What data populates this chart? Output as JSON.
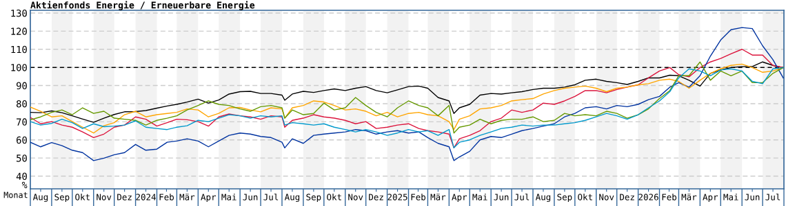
{
  "chart_data": {
    "type": "line",
    "title": "Aktienfonds Energie / Erneuerbare Energie",
    "xlabel": "Monat",
    "ylabel": "%",
    "x": [
      "2023-08-01",
      "2023-08-16",
      "2023-09-01",
      "2023-09-16",
      "2023-10-01",
      "2023-10-16",
      "2023-11-01",
      "2023-11-16",
      "2023-12-01",
      "2023-12-16",
      "2024-01-01",
      "2024-01-16",
      "2024-02-01",
      "2024-02-16",
      "2024-03-01",
      "2024-03-16",
      "2024-04-01",
      "2024-04-16",
      "2024-05-01",
      "2024-05-16",
      "2024-06-01",
      "2024-06-16",
      "2024-07-01",
      "2024-07-16",
      "2024-08-01",
      "2024-08-05",
      "2024-08-16",
      "2024-09-01",
      "2024-09-16",
      "2024-10-01",
      "2024-10-16",
      "2024-11-01",
      "2024-11-16",
      "2024-12-01",
      "2024-12-16",
      "2025-01-01",
      "2025-01-16",
      "2025-02-01",
      "2025-02-16",
      "2025-03-01",
      "2025-03-16",
      "2025-04-01",
      "2025-04-08",
      "2025-04-16",
      "2025-05-01",
      "2025-05-16",
      "2025-06-01",
      "2025-06-16",
      "2025-07-01",
      "2025-07-16",
      "2025-08-01",
      "2025-08-16",
      "2025-09-01",
      "2025-09-16",
      "2025-10-01",
      "2025-10-16",
      "2025-11-01",
      "2025-11-16",
      "2025-12-01",
      "2025-12-16",
      "2026-01-01",
      "2026-01-16",
      "2026-02-01",
      "2026-02-16",
      "2026-03-01",
      "2026-03-16",
      "2026-04-01",
      "2026-04-16",
      "2026-05-01",
      "2026-05-16",
      "2026-06-01",
      "2026-06-16",
      "2026-07-01",
      "2026-07-16",
      "2026-07-31"
    ],
    "series": [
      {
        "color": "#000000",
        "values": [
          75.2,
          75,
          76,
          75,
          73.3,
          71.5,
          69.7,
          72,
          74,
          75.5,
          75.6,
          76.2,
          77.5,
          78.7,
          79.6,
          80.9,
          82.5,
          80.3,
          82,
          85.3,
          86.6,
          86.8,
          85.6,
          85.6,
          84.7,
          81.9,
          85.3,
          86.8,
          86.2,
          87.2,
          88.1,
          87.2,
          88.5,
          89.4,
          87.2,
          86,
          87.6,
          89.4,
          89.7,
          88.5,
          83.4,
          81.5,
          74.6,
          77.7,
          79.6,
          84.7,
          85.6,
          85.3,
          86,
          86.6,
          87.8,
          88.5,
          88.5,
          89.1,
          90.4,
          92.9,
          93.5,
          92.3,
          91.6,
          90.6,
          92.3,
          94.2,
          94.2,
          95.7,
          95.4,
          92.9,
          89.7,
          96.7,
          98.6,
          99.9,
          100.5,
          100.5,
          103,
          101.1,
          99.9
        ]
      },
      {
        "color": "#dc143c",
        "values": [
          72.4,
          68.9,
          70.1,
          68.2,
          67,
          64.4,
          61.3,
          63.2,
          67,
          68.2,
          72.7,
          71.4,
          67.6,
          69.5,
          71.4,
          71.1,
          70.1,
          67.6,
          72.7,
          74.3,
          73.3,
          72.7,
          71.4,
          73.3,
          72.7,
          67,
          70.8,
          72,
          73.9,
          72.7,
          72,
          70.8,
          68.9,
          70.1,
          66.3,
          67,
          68.2,
          68.9,
          66.3,
          65.1,
          64.4,
          63.2,
          55.6,
          60.6,
          62.5,
          65.1,
          70.1,
          72,
          76.5,
          75.2,
          76.5,
          80.3,
          79.6,
          81.5,
          84,
          87.2,
          87.2,
          86,
          87.8,
          89.1,
          90.4,
          94.2,
          98,
          99.9,
          96,
          94.8,
          99.9,
          103,
          104.9,
          107.5,
          110,
          106.8,
          106.8,
          101.1,
          99.9
        ]
      },
      {
        "color": "#0033a0",
        "values": [
          58.7,
          56.2,
          58.5,
          56.8,
          54.3,
          53,
          48.6,
          49.9,
          51.8,
          53,
          57.5,
          54.3,
          54.9,
          58.7,
          59.4,
          60.6,
          59.4,
          56.2,
          59.4,
          62.5,
          63.8,
          63.2,
          61.9,
          61.3,
          58.7,
          55.6,
          60.6,
          58.1,
          62.5,
          63.2,
          63.8,
          64.4,
          65.7,
          65.1,
          63.2,
          64.4,
          65.1,
          63.8,
          64.4,
          61.3,
          58.1,
          56.2,
          48.6,
          50.6,
          53.7,
          60,
          61.9,
          61.3,
          63.2,
          65.1,
          66.3,
          67.6,
          68.9,
          72.7,
          74.6,
          77.7,
          78.3,
          77.1,
          79,
          78.3,
          79.6,
          82.2,
          84,
          89.1,
          91.6,
          89.1,
          95.4,
          106.2,
          115.1,
          120.8,
          122,
          121.4,
          111.9,
          104.3,
          94.2
        ]
      },
      {
        "color": "#ffa500",
        "values": [
          78.1,
          75.8,
          72.7,
          73.3,
          70.1,
          67,
          63.8,
          67.8,
          69.5,
          73.9,
          75.8,
          72.7,
          73.9,
          74.6,
          75.2,
          77.1,
          76.5,
          72.7,
          74.6,
          77.7,
          77.9,
          76.5,
          75.5,
          77.7,
          77.1,
          72,
          77.7,
          79,
          81.5,
          80.9,
          79,
          76.5,
          77.1,
          75.8,
          73.3,
          75.2,
          72.7,
          74.6,
          75.2,
          73.9,
          73.3,
          70.1,
          65.7,
          71.4,
          73.3,
          77.1,
          77.7,
          79,
          81.5,
          82.2,
          82.8,
          85.3,
          87.2,
          88.5,
          89.1,
          89.7,
          88.5,
          86.6,
          88.5,
          89.1,
          90.4,
          91,
          92.9,
          93.5,
          92.3,
          88.5,
          92.9,
          96.7,
          99.2,
          101.1,
          101.8,
          99.9,
          97.3,
          98,
          99.9
        ]
      },
      {
        "color": "#669900",
        "values": [
          71.1,
          72.7,
          75.2,
          76.5,
          73.9,
          77.7,
          74.6,
          75.8,
          72,
          71.4,
          70.8,
          68.2,
          70.8,
          72,
          73.3,
          76.5,
          79,
          81.5,
          79.6,
          79,
          77.1,
          75.8,
          78.3,
          79,
          77.7,
          72,
          76.5,
          73.9,
          74.6,
          80.3,
          76.5,
          77.7,
          83.4,
          79,
          75.2,
          72.7,
          77.7,
          81.5,
          79,
          77.7,
          73.3,
          79,
          63.8,
          67,
          68.2,
          71.4,
          68.9,
          70.8,
          71.4,
          71.4,
          72.7,
          70.1,
          70.8,
          74.6,
          73.3,
          73.9,
          73.3,
          75.8,
          74.6,
          72,
          73.9,
          77.1,
          82.8,
          87.2,
          95.4,
          95.4,
          103,
          92.9,
          98,
          95.4,
          98,
          91.6,
          91.6,
          96.7,
          99.9
        ]
      },
      {
        "color": "#0099cc",
        "values": [
          70.1,
          68.2,
          69.1,
          71.4,
          69.5,
          66.3,
          68.9,
          67.3,
          67.6,
          68.2,
          70.5,
          67,
          66.3,
          65.7,
          67,
          67.8,
          70.8,
          70.1,
          72,
          73.9,
          73.3,
          72,
          73.3,
          72.7,
          73.3,
          68.2,
          69.5,
          68.9,
          68.2,
          68.9,
          67,
          65.7,
          64.4,
          65.7,
          64.4,
          62.5,
          63.8,
          65.7,
          64.4,
          65.1,
          62.5,
          65.7,
          55.6,
          58.7,
          60,
          62.5,
          64.4,
          66.3,
          67,
          68.2,
          67.6,
          68.2,
          68.2,
          68.9,
          69.5,
          70.8,
          72.7,
          74.6,
          73.3,
          71.4,
          73.9,
          77.7,
          81.5,
          86.6,
          94.2,
          99.2,
          98,
          95.4,
          98.6,
          99.2,
          98,
          92.3,
          91,
          99.2,
          99.9
        ]
      }
    ],
    "xlim": [
      "2023-08-01",
      "2026-08-01"
    ],
    "xticks": [
      {
        "value": "2023-08-16",
        "label": "Aug"
      },
      {
        "value": "2023-09-16",
        "label": "Sep"
      },
      {
        "value": "2023-10-16",
        "label": "Okt"
      },
      {
        "value": "2023-11-16",
        "label": "Nov"
      },
      {
        "value": "2023-12-16",
        "label": "Dez"
      },
      {
        "value": "2024-01-16",
        "label": "2024"
      },
      {
        "value": "2024-02-15",
        "label": "Feb"
      },
      {
        "value": "2024-03-16",
        "label": "Mär"
      },
      {
        "value": "2024-04-16",
        "label": "Apr"
      },
      {
        "value": "2024-05-16",
        "label": "Mai"
      },
      {
        "value": "2024-06-16",
        "label": "Jun"
      },
      {
        "value": "2024-07-16",
        "label": "Jul"
      },
      {
        "value": "2024-08-16",
        "label": "Aug"
      },
      {
        "value": "2024-09-16",
        "label": "Sep"
      },
      {
        "value": "2024-10-16",
        "label": "Okt"
      },
      {
        "value": "2024-11-16",
        "label": "Nov"
      },
      {
        "value": "2024-12-16",
        "label": "Dez"
      },
      {
        "value": "2025-01-16",
        "label": "2025"
      },
      {
        "value": "2025-02-15",
        "label": "Feb"
      },
      {
        "value": "2025-03-16",
        "label": "Mär"
      },
      {
        "value": "2025-04-16",
        "label": "Apr"
      },
      {
        "value": "2025-05-16",
        "label": "Mai"
      },
      {
        "value": "2025-06-16",
        "label": "Jun"
      },
      {
        "value": "2025-07-16",
        "label": "Jul"
      },
      {
        "value": "2025-08-16",
        "label": "Aug"
      },
      {
        "value": "2025-09-16",
        "label": "Sep"
      },
      {
        "value": "2025-10-16",
        "label": "Okt"
      },
      {
        "value": "2025-11-16",
        "label": "Nov"
      },
      {
        "value": "2025-12-16",
        "label": "Dez"
      },
      {
        "value": "2026-01-16",
        "label": "2026"
      },
      {
        "value": "2026-02-15",
        "label": "Feb"
      },
      {
        "value": "2026-03-16",
        "label": "Mär"
      },
      {
        "value": "2026-04-16",
        "label": "Apr"
      },
      {
        "value": "2026-05-16",
        "label": "Mai"
      },
      {
        "value": "2026-06-16",
        "label": "Jun"
      },
      {
        "value": "2026-07-16",
        "label": "Jul"
      }
    ],
    "ylim": [
      33,
      131.5
    ],
    "yticks": [
      40,
      50,
      60,
      70,
      80,
      90,
      100,
      110,
      120,
      130
    ],
    "grid": "y",
    "line_style": "solid",
    "ref_lines": [
      {
        "axis": "y",
        "value": 100,
        "color": "#000000",
        "line_style": "dashed"
      }
    ],
    "bands": [
      {
        "axis": "x",
        "from": "2023-09-01",
        "to": "2023-10-01",
        "color": "#f2f2f2"
      },
      {
        "axis": "x",
        "from": "2023-11-01",
        "to": "2023-12-01",
        "color": "#f2f2f2"
      },
      {
        "axis": "x",
        "from": "2024-01-01",
        "to": "2024-02-01",
        "color": "#f2f2f2"
      },
      {
        "axis": "x",
        "from": "2024-03-01",
        "to": "2024-04-01",
        "color": "#f2f2f2"
      },
      {
        "axis": "x",
        "from": "2024-05-01",
        "to": "2024-06-01",
        "color": "#f2f2f2"
      },
      {
        "axis": "x",
        "from": "2024-07-01",
        "to": "2024-08-01",
        "color": "#f2f2f2"
      },
      {
        "axis": "x",
        "from": "2024-09-01",
        "to": "2024-10-01",
        "color": "#f2f2f2"
      },
      {
        "axis": "x",
        "from": "2024-11-01",
        "to": "2024-12-01",
        "color": "#f2f2f2"
      },
      {
        "axis": "x",
        "from": "2025-01-01",
        "to": "2025-02-01",
        "color": "#f2f2f2"
      },
      {
        "axis": "x",
        "from": "2025-03-01",
        "to": "2025-04-01",
        "color": "#f2f2f2"
      },
      {
        "axis": "x",
        "from": "2025-05-01",
        "to": "2025-06-01",
        "color": "#f2f2f2"
      },
      {
        "axis": "x",
        "from": "2025-07-01",
        "to": "2025-08-01",
        "color": "#f2f2f2"
      },
      {
        "axis": "x",
        "from": "2025-09-01",
        "to": "2025-10-01",
        "color": "#f2f2f2"
      },
      {
        "axis": "x",
        "from": "2025-11-01",
        "to": "2025-12-01",
        "color": "#f2f2f2"
      },
      {
        "axis": "x",
        "from": "2026-01-01",
        "to": "2026-02-01",
        "color": "#f2f2f2"
      },
      {
        "axis": "x",
        "from": "2026-03-01",
        "to": "2026-04-01",
        "color": "#f2f2f2"
      },
      {
        "axis": "x",
        "from": "2026-05-01",
        "to": "2026-06-01",
        "color": "#f2f2f2"
      },
      {
        "axis": "x",
        "from": "2026-07-01",
        "to": "2026-08-01",
        "color": "#f2f2f2"
      }
    ]
  }
}
